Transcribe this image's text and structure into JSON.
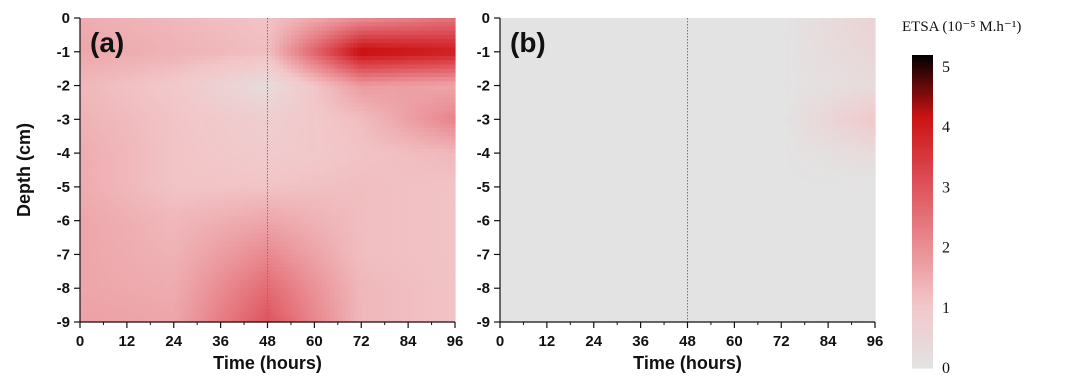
{
  "chart_data": [
    {
      "type": "heatmap",
      "panel_label": "(a)",
      "xlabel": "Time (hours)",
      "ylabel": "Depth (cm)",
      "xlim": [
        0,
        96
      ],
      "ylim": [
        -9,
        0
      ],
      "x_ticks": [
        "0",
        "12",
        "24",
        "36",
        "48",
        "60",
        "72",
        "84",
        "96"
      ],
      "y_ticks": [
        "0",
        "-1",
        "-2",
        "-3",
        "-4",
        "-5",
        "-6",
        "-7",
        "-8",
        "-9"
      ],
      "x_tick_values": [
        0,
        12,
        24,
        36,
        48,
        60,
        72,
        84,
        96
      ],
      "y_tick_values": [
        0,
        -1,
        -2,
        -3,
        -4,
        -5,
        -6,
        -7,
        -8,
        -9
      ],
      "marker_time": 48,
      "x": [
        0,
        24,
        48,
        72,
        96
      ],
      "depths": [
        0,
        -1,
        -2,
        -3,
        -4,
        -5,
        -6,
        -7,
        -8,
        -9
      ],
      "values": [
        [
          1.5,
          1.3,
          1.1,
          2.0,
          2.5
        ],
        [
          1.6,
          1.4,
          1.2,
          4.3,
          4.0
        ],
        [
          1.3,
          1.0,
          0.3,
          1.8,
          1.6
        ],
        [
          1.4,
          1.1,
          0.8,
          1.2,
          2.2
        ],
        [
          1.5,
          1.1,
          0.9,
          1.1,
          1.3
        ],
        [
          1.5,
          1.1,
          1.1,
          1.2,
          1.1
        ],
        [
          1.6,
          1.3,
          1.6,
          1.2,
          1.1
        ],
        [
          1.6,
          1.4,
          2.1,
          1.2,
          1.1
        ],
        [
          1.6,
          1.5,
          2.6,
          1.3,
          1.1
        ],
        [
          1.7,
          1.6,
          3.0,
          1.3,
          1.1
        ]
      ]
    },
    {
      "type": "heatmap",
      "panel_label": "(b)",
      "xlabel": "Time (hours)",
      "ylabel": "",
      "xlim": [
        0,
        96
      ],
      "ylim": [
        -9,
        0
      ],
      "x_ticks": [
        "0",
        "12",
        "24",
        "36",
        "48",
        "60",
        "72",
        "84",
        "96"
      ],
      "y_ticks": [
        "0",
        "-1",
        "-2",
        "-3",
        "-4",
        "-5",
        "-6",
        "-7",
        "-8",
        "-9"
      ],
      "x_tick_values": [
        0,
        12,
        24,
        36,
        48,
        60,
        72,
        84,
        96
      ],
      "y_tick_values": [
        0,
        -1,
        -2,
        -3,
        -4,
        -5,
        -6,
        -7,
        -8,
        -9
      ],
      "marker_time": 48,
      "x": [
        0,
        24,
        48,
        72,
        96
      ],
      "depths": [
        0,
        -1,
        -2,
        -3,
        -4,
        -5,
        -6,
        -7,
        -8,
        -9
      ],
      "values": [
        [
          0.0,
          0.0,
          0.0,
          0.0,
          0.6
        ],
        [
          0.0,
          0.0,
          0.0,
          0.0,
          0.5
        ],
        [
          0.0,
          0.0,
          0.0,
          0.0,
          0.3
        ],
        [
          0.0,
          0.0,
          0.0,
          0.0,
          1.0
        ],
        [
          0.0,
          0.0,
          0.0,
          0.0,
          0.3
        ],
        [
          0.0,
          0.0,
          0.0,
          0.0,
          0.0
        ],
        [
          0.0,
          0.0,
          0.0,
          0.0,
          0.0
        ],
        [
          0.0,
          0.0,
          0.0,
          0.0,
          0.0
        ],
        [
          0.0,
          0.0,
          0.0,
          0.0,
          0.0
        ],
        [
          0.0,
          0.0,
          0.0,
          0.0,
          0.0
        ]
      ]
    }
  ],
  "colorbar": {
    "title": "ETSA (10⁻⁵ M.h⁻¹)",
    "tick_labels": [
      "0",
      "1",
      "2",
      "3",
      "4",
      "5"
    ],
    "tick_values": [
      0,
      1,
      2,
      3,
      4,
      5
    ],
    "range": [
      0,
      5.2
    ],
    "colors": [
      "#e3e3e3",
      "#f2c7c9",
      "#e98a90",
      "#dd4d56",
      "#cc1313",
      "#000000"
    ]
  }
}
